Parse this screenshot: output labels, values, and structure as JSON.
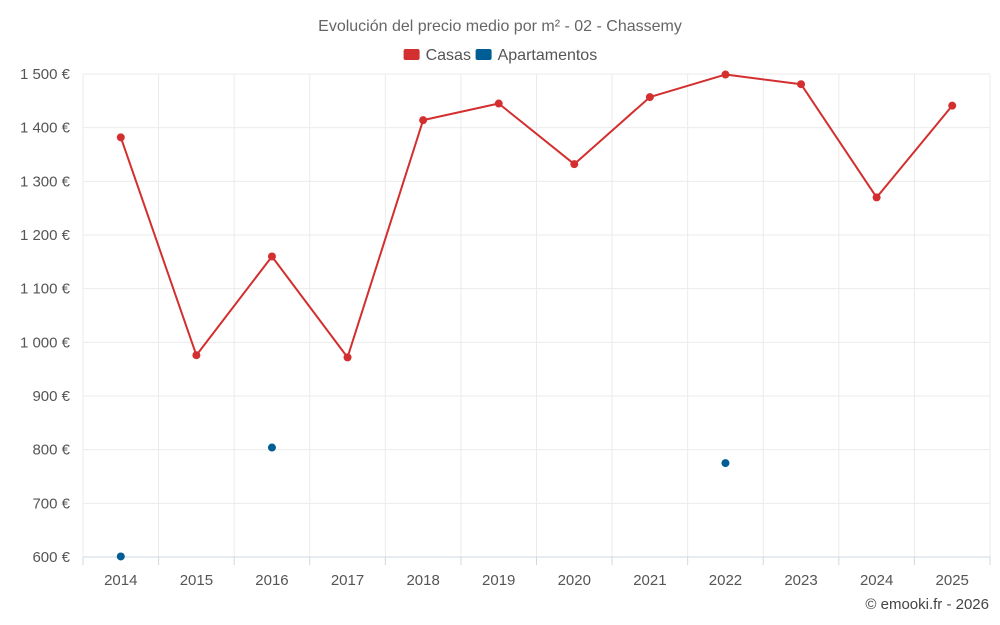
{
  "chart_data": {
    "type": "line",
    "title": "Evolución del precio medio por m² - 02 - Chassemy",
    "categories": [
      "2014",
      "2015",
      "2016",
      "2017",
      "2018",
      "2019",
      "2020",
      "2021",
      "2022",
      "2023",
      "2024",
      "2025"
    ],
    "series": [
      {
        "name": "Casas",
        "color": "#d32f2f",
        "values": [
          1382,
          976,
          1160,
          972,
          1414,
          1445,
          1332,
          1457,
          1499,
          1481,
          1270,
          1441
        ]
      },
      {
        "name": "Apartamentos",
        "color": "#005e94",
        "values": [
          601,
          null,
          804,
          null,
          null,
          null,
          null,
          null,
          775,
          null,
          null,
          null
        ]
      }
    ],
    "ylim": [
      600,
      1500
    ],
    "yticks": [
      600,
      700,
      800,
      900,
      1000,
      1100,
      1200,
      1300,
      1400,
      1500
    ],
    "ytick_labels": [
      "600 €",
      "700 €",
      "800 €",
      "900 €",
      "1 000 €",
      "1 100 €",
      "1 200 €",
      "1 300 €",
      "1 400 €",
      "1 500 €"
    ],
    "grid": true,
    "legend": "top-center"
  },
  "credit": "© emooki.fr - 2026"
}
